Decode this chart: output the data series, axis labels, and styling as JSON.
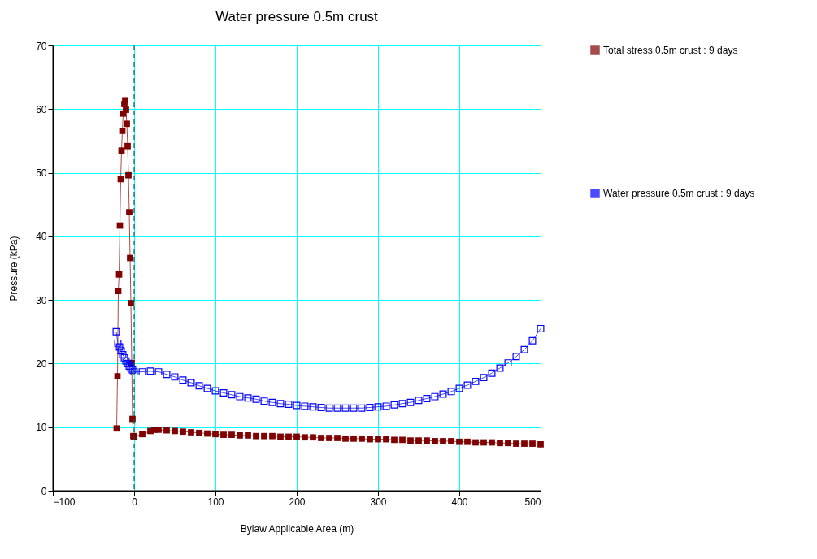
{
  "chart_data": {
    "type": "line",
    "title": "Water pressure 0.5m crust",
    "xlabel": "Bylaw Applicable Area (m)",
    "ylabel": "Pressure (kPa)",
    "xlim": [
      -100,
      500
    ],
    "xticks": [
      -100,
      0,
      100,
      200,
      300,
      400,
      500
    ],
    "ylim": [
      0,
      70
    ],
    "yticks": [
      0,
      10,
      20,
      30,
      40,
      50,
      60,
      70
    ],
    "grid": true,
    "legend": "right",
    "marker": "square",
    "line_style": "solid",
    "ref_lines": [
      {
        "axis": "x",
        "value": 0,
        "color": "#006060",
        "line_style": "dashed"
      }
    ],
    "series": [
      {
        "name": "Total stress 0.5m crust : 9 days",
        "color": "#800000",
        "x": [
          -21.5,
          -20.5,
          -19.5,
          -18.5,
          -17.5,
          -16.5,
          -15.5,
          -14.5,
          -13.5,
          -12,
          -11,
          -10,
          -9,
          -8,
          -7,
          -6,
          -5,
          -4,
          -3,
          -2,
          -1,
          0,
          10,
          20,
          25,
          30,
          40,
          50,
          60,
          70,
          80,
          90,
          100,
          110,
          120,
          130,
          140,
          150,
          160,
          170,
          180,
          190,
          200,
          210,
          220,
          230,
          240,
          250,
          260,
          270,
          280,
          290,
          300,
          310,
          320,
          330,
          340,
          350,
          360,
          370,
          380,
          390,
          400,
          410,
          420,
          430,
          440,
          450,
          460,
          470,
          480,
          490,
          500
        ],
        "values": [
          9.8,
          18.0,
          31.4,
          34.0,
          41.7,
          49.0,
          53.5,
          56.6,
          59.3,
          60.8,
          61.4,
          59.9,
          57.7,
          54.2,
          49.6,
          43.8,
          36.6,
          29.5,
          20.1,
          11.3,
          8.6,
          8.5,
          8.9,
          9.4,
          9.6,
          9.6,
          9.5,
          9.4,
          9.3,
          9.2,
          9.1,
          9.0,
          8.9,
          8.8,
          8.8,
          8.7,
          8.7,
          8.6,
          8.6,
          8.6,
          8.5,
          8.5,
          8.5,
          8.4,
          8.4,
          8.3,
          8.3,
          8.3,
          8.2,
          8.2,
          8.2,
          8.1,
          8.1,
          8.1,
          8.0,
          8.0,
          7.9,
          7.9,
          7.9,
          7.8,
          7.8,
          7.8,
          7.7,
          7.7,
          7.6,
          7.6,
          7.6,
          7.5,
          7.5,
          7.4,
          7.4,
          7.4,
          7.3
        ]
      },
      {
        "name": "Water pressure 0.5m crust : 9 days",
        "color": "#0000ff",
        "x": [
          -22,
          -20,
          -18,
          -16,
          -14,
          -12,
          -10,
          -8,
          -6,
          -4,
          -2,
          0,
          10,
          20,
          30,
          40,
          50,
          60,
          70,
          80,
          90,
          100,
          110,
          120,
          130,
          140,
          150,
          160,
          170,
          180,
          190,
          200,
          210,
          220,
          230,
          240,
          250,
          260,
          270,
          280,
          290,
          300,
          310,
          320,
          330,
          340,
          350,
          360,
          370,
          380,
          390,
          400,
          410,
          420,
          430,
          440,
          450,
          460,
          470,
          480,
          490,
          500
        ],
        "values": [
          25.0,
          23.2,
          22.6,
          22.0,
          21.4,
          20.9,
          20.4,
          20.0,
          19.6,
          19.3,
          19.0,
          18.7,
          18.7,
          18.8,
          18.7,
          18.3,
          17.9,
          17.4,
          17.0,
          16.5,
          16.1,
          15.7,
          15.4,
          15.1,
          14.8,
          14.6,
          14.4,
          14.1,
          13.9,
          13.7,
          13.6,
          13.4,
          13.3,
          13.2,
          13.1,
          13.0,
          13.0,
          13.0,
          13.0,
          13.0,
          13.1,
          13.2,
          13.3,
          13.5,
          13.7,
          13.9,
          14.2,
          14.5,
          14.8,
          15.2,
          15.6,
          16.1,
          16.6,
          17.2,
          17.8,
          18.5,
          19.3,
          20.1,
          21.1,
          22.2,
          23.6,
          25.5
        ]
      }
    ]
  }
}
